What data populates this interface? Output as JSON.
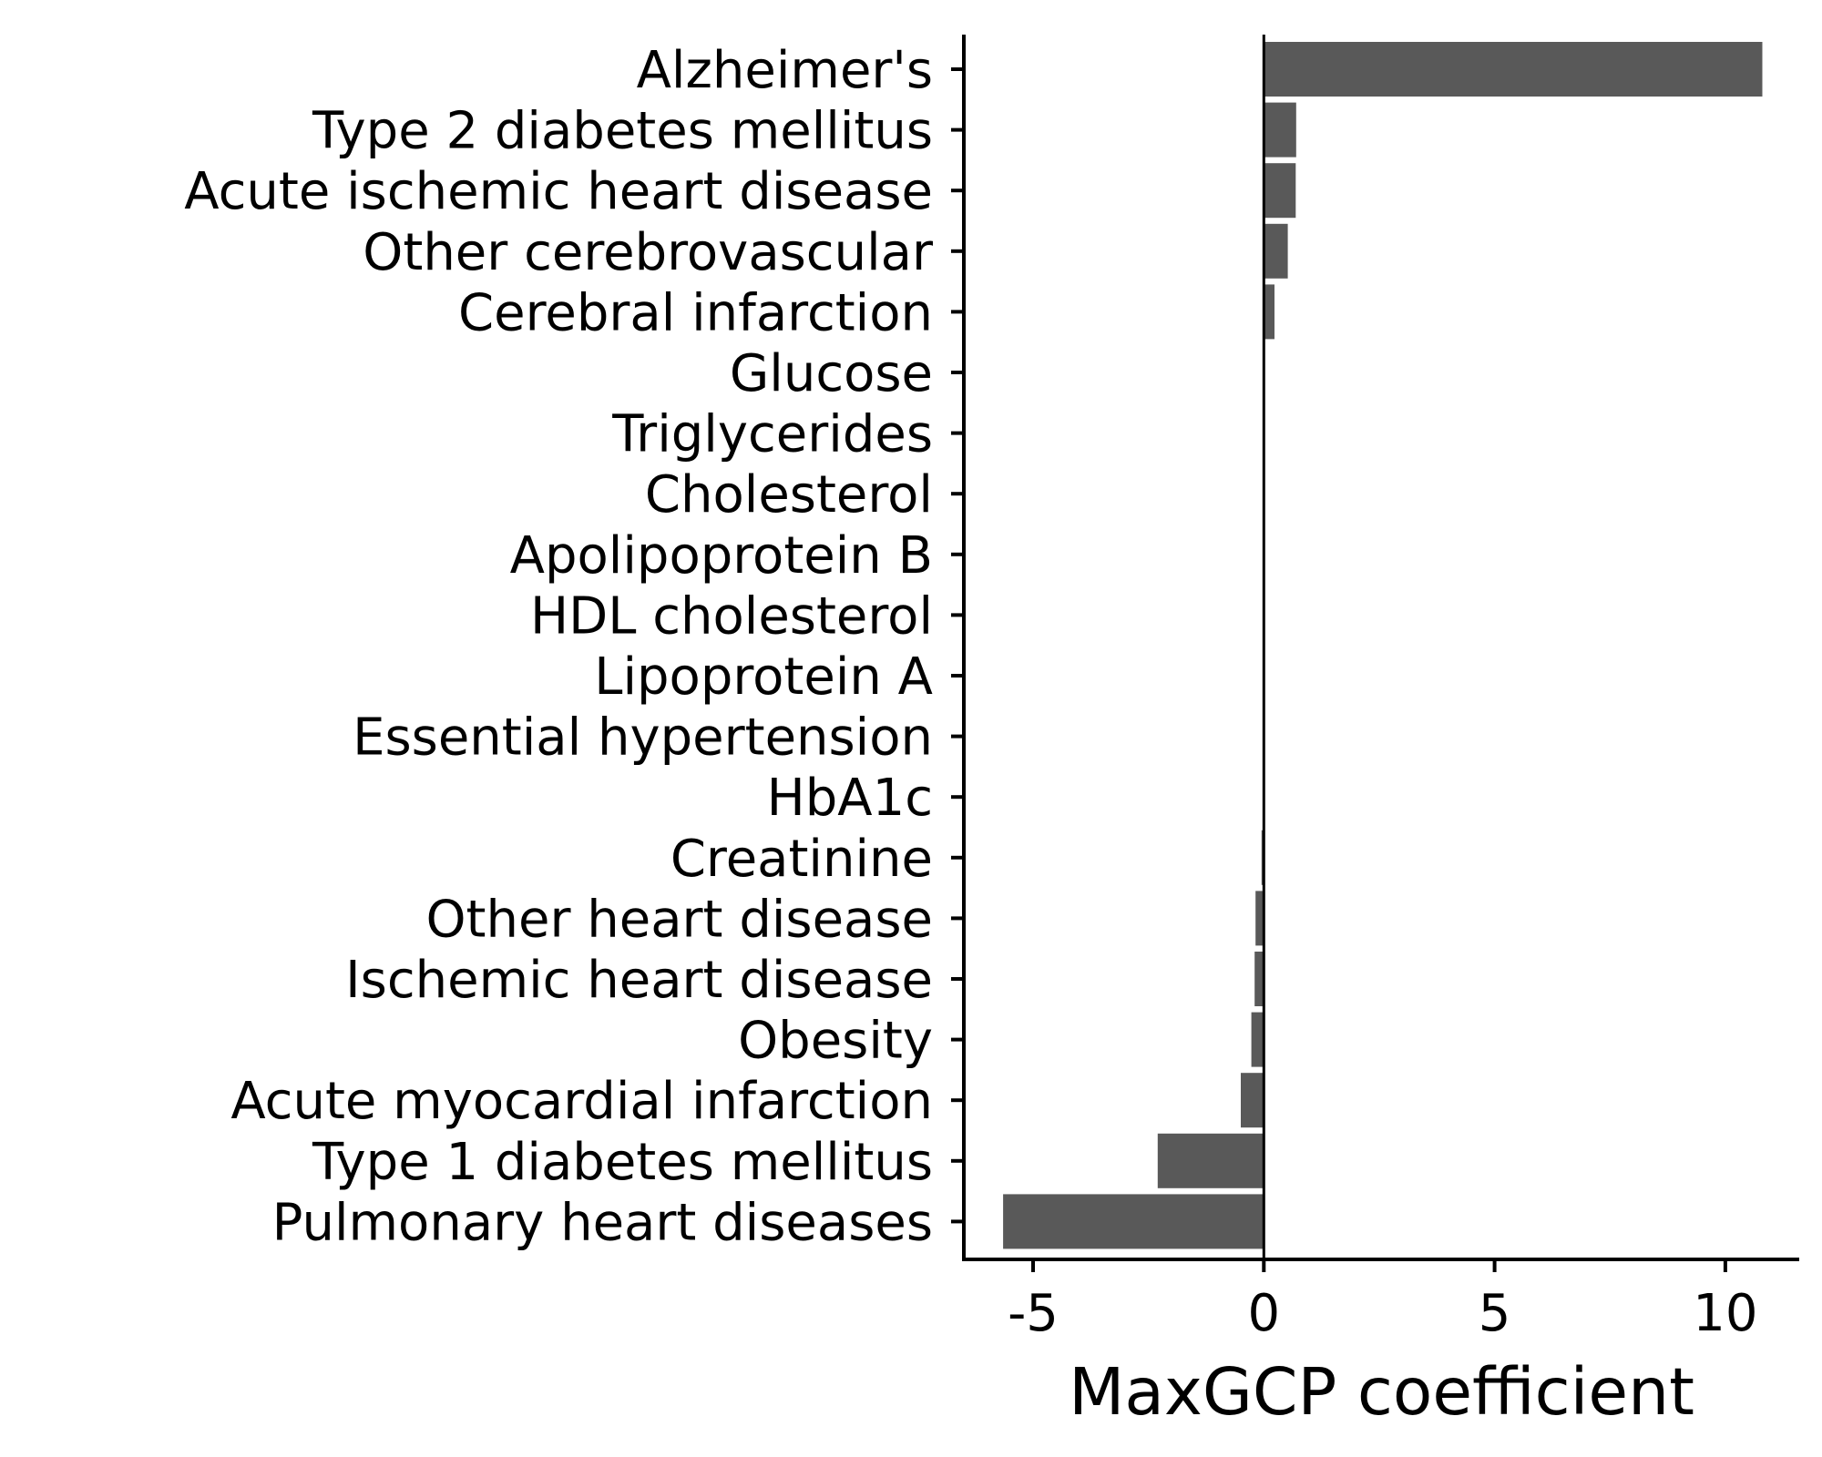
{
  "chart_data": {
    "type": "bar",
    "orientation": "horizontal",
    "title": "",
    "xlabel": "MaxGCP coefficient",
    "ylabel": "",
    "xlim": [
      -6.5,
      11.6
    ],
    "x_ticks": [
      -5,
      0,
      5,
      10
    ],
    "x_tick_labels": [
      "-5",
      "0",
      "5",
      "10"
    ],
    "grid": false,
    "zero_line": true,
    "categories": [
      "Alzheimer's",
      "Type 2 diabetes mellitus",
      "Acute ischemic heart disease",
      "Other cerebrovascular",
      "Cerebral infarction",
      "Glucose",
      "Triglycerides",
      "Cholesterol",
      "Apolipoprotein B",
      "HDL cholesterol",
      "Lipoprotein A",
      "Essential hypertension",
      "HbA1c",
      "Creatinine",
      "Other heart disease",
      "Ischemic heart disease",
      "Obesity",
      "Acute myocardial infarction",
      "Type 1 diabetes mellitus",
      "Pulmonary heart diseases"
    ],
    "values": [
      10.8,
      0.7,
      0.69,
      0.52,
      0.23,
      0.02,
      0.02,
      0.02,
      0.02,
      0.02,
      0.02,
      0.01,
      0.01,
      -0.05,
      -0.18,
      -0.2,
      -0.27,
      -0.5,
      -2.3,
      -5.65
    ],
    "colors": {
      "bar": "#595959",
      "axis": "#000000",
      "zero_line": "#000000"
    }
  }
}
